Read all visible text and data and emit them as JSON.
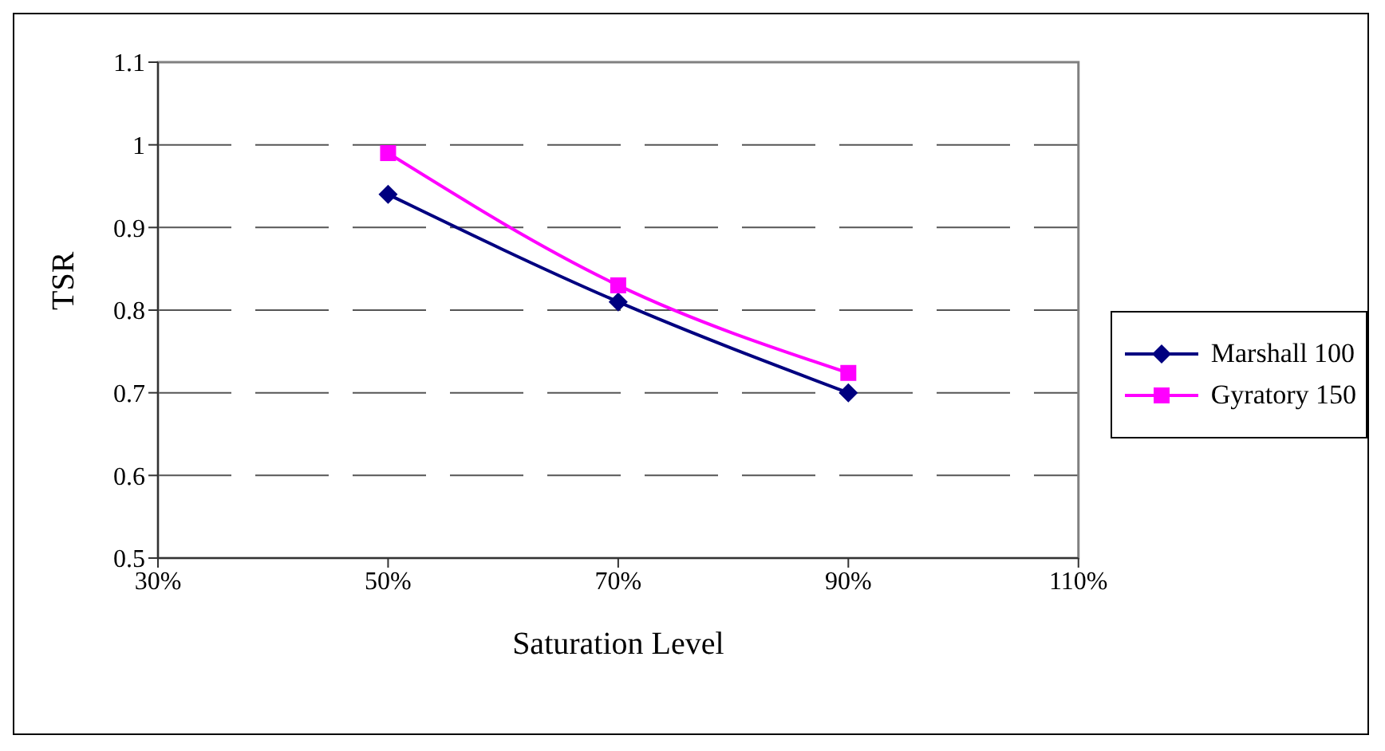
{
  "chart_data": {
    "type": "line",
    "xlabel": "Saturation Level",
    "ylabel": "TSR",
    "x": [
      50,
      70,
      90
    ],
    "series": [
      {
        "name": "Marshall 100",
        "color": "#000080",
        "marker": "diamond",
        "values": [
          0.94,
          0.81,
          0.7
        ]
      },
      {
        "name": "Gyratory 150",
        "color": "#ff00ff",
        "marker": "square",
        "values": [
          0.99,
          0.83,
          0.724
        ]
      }
    ],
    "xlim": [
      30,
      110
    ],
    "xticks": [
      {
        "value": 30,
        "label": "30%"
      },
      {
        "value": 50,
        "label": "50%"
      },
      {
        "value": 70,
        "label": "70%"
      },
      {
        "value": 90,
        "label": "90%"
      },
      {
        "value": 110,
        "label": "110%"
      }
    ],
    "ylim": [
      0.5,
      1.1
    ],
    "yticks": [
      0.5,
      0.6,
      0.7,
      0.8,
      0.9,
      1,
      1.1
    ],
    "grid": "y",
    "legend": "right",
    "line_style": "solid"
  }
}
